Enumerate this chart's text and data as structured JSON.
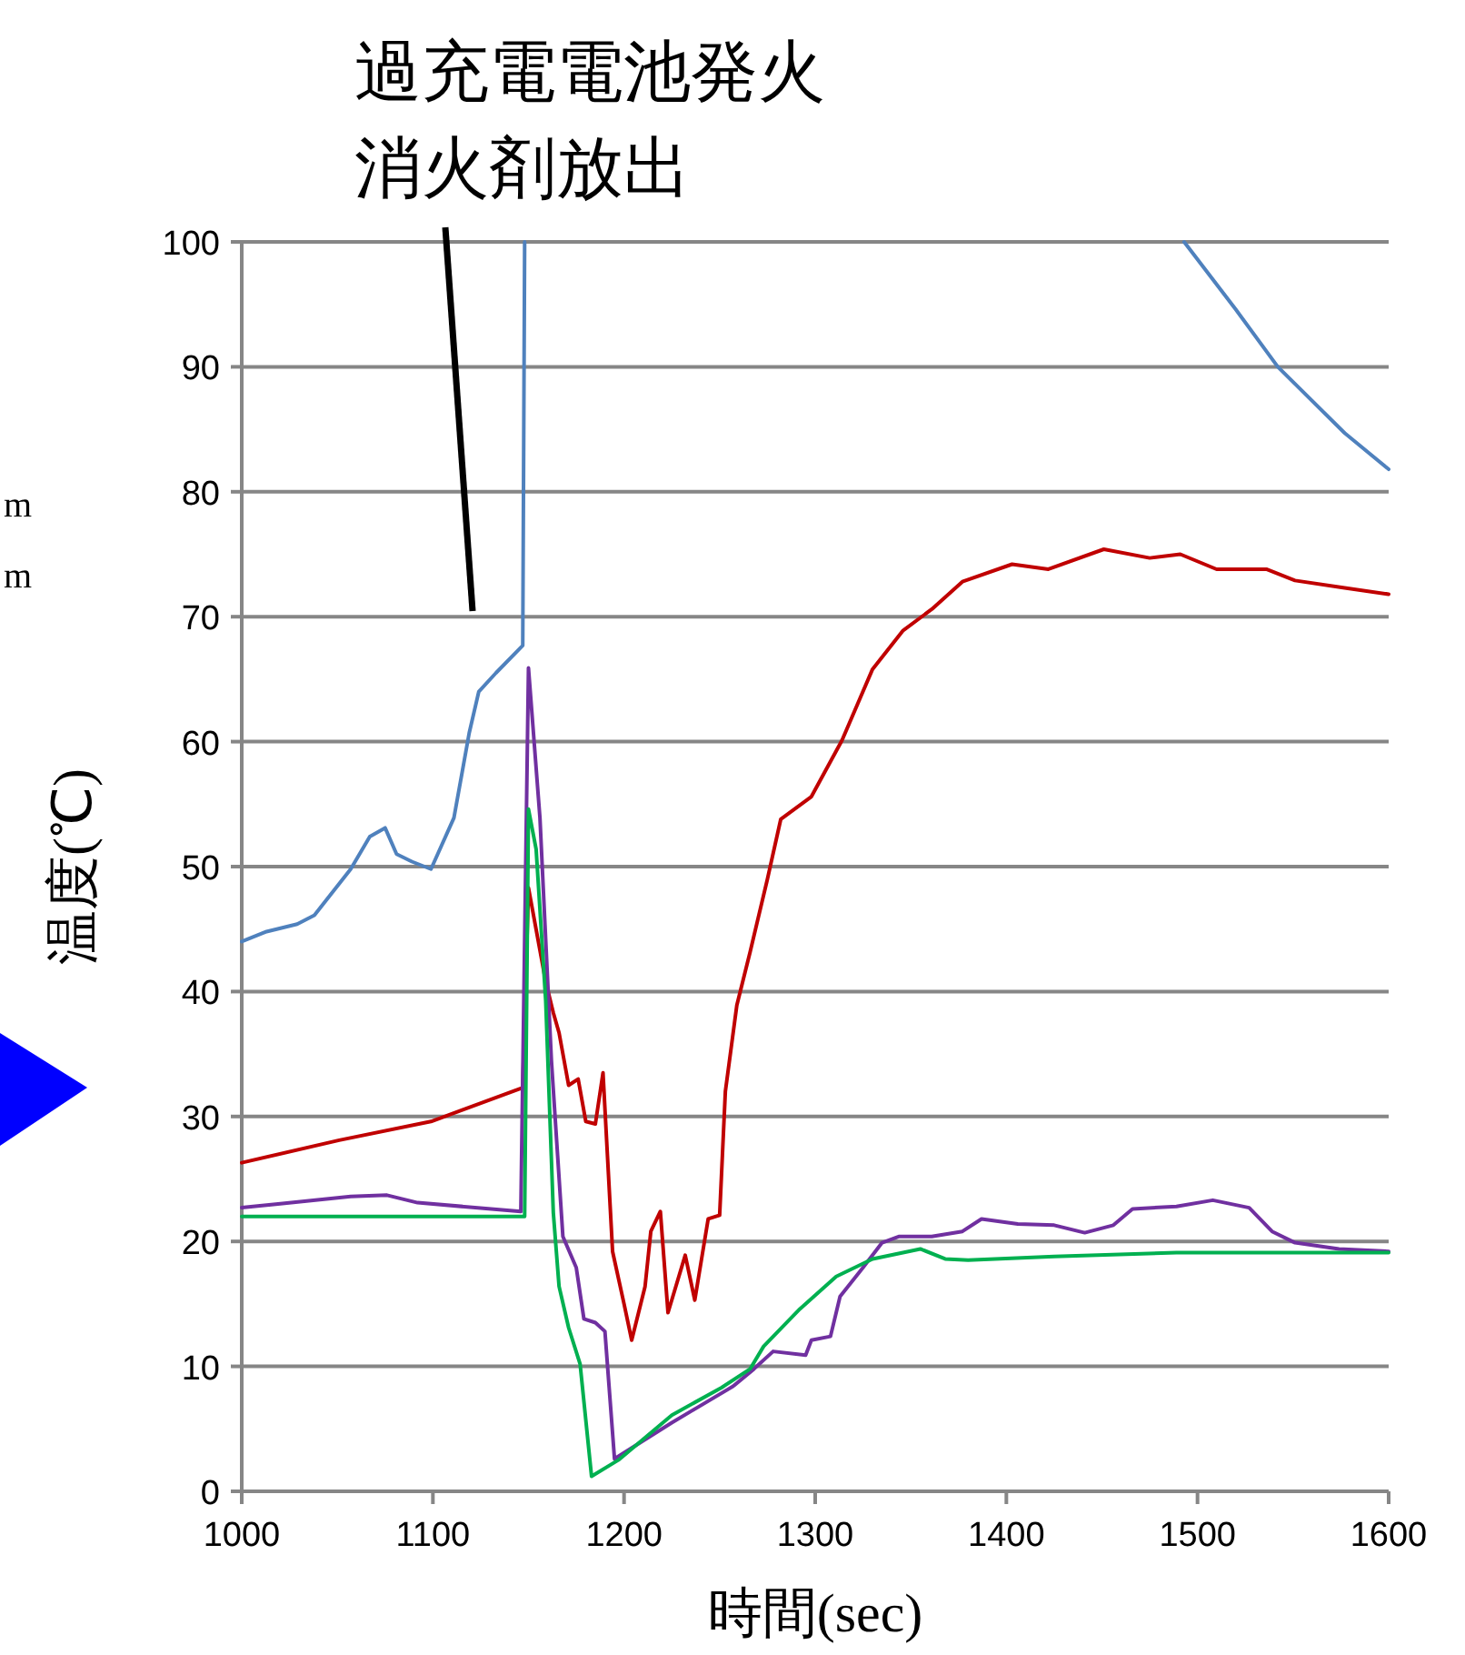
{
  "chart_data": {
    "type": "line",
    "xlabel": "時間(sec)",
    "ylabel": "温度(℃)",
    "xlim": [
      1000,
      1600
    ],
    "xticks": [
      1000,
      1100,
      1200,
      1300,
      1400,
      1500,
      1600
    ],
    "ylim": [
      0,
      100
    ],
    "yticks": [
      0,
      10,
      20,
      30,
      40,
      50,
      60,
      70,
      80,
      90,
      100
    ],
    "grid": "y",
    "annotations": [
      "過充電電池発火",
      "消火剤放出",
      "m",
      "m"
    ],
    "series": [
      {
        "color": "#4f81bd",
        "x": [
          1000,
          1013,
          1029,
          1038,
          1057,
          1067,
          1075,
          1081,
          1089,
          1099,
          1111,
          1119,
          1124,
          1133,
          1147,
          1148
        ],
        "values": [
          44.0,
          44.8,
          45.4,
          46.1,
          49.8,
          52.4,
          53.1,
          51.0,
          50.4,
          49.8,
          53.9,
          60.7,
          64.0,
          65.5,
          67.7,
          100
        ]
      },
      {
        "color": "#4f81bd",
        "x": [
          1493,
          1520,
          1542,
          1577,
          1600
        ],
        "values": [
          100,
          94.6,
          90.0,
          84.7,
          81.8
        ]
      },
      {
        "color": "#c00000",
        "x": [
          1000,
          1051,
          1099,
          1147,
          1150,
          1159,
          1163,
          1166,
          1171,
          1176,
          1180,
          1185,
          1189,
          1194,
          1200,
          1204,
          1211,
          1214,
          1219,
          1223,
          1232,
          1237,
          1244,
          1250,
          1253,
          1259,
          1266,
          1275,
          1282,
          1298,
          1314,
          1330,
          1346,
          1361,
          1377,
          1403,
          1422,
          1451,
          1475,
          1491,
          1510,
          1536,
          1551,
          1577,
          1600
        ],
        "values": [
          26.3,
          28.1,
          29.6,
          32.3,
          48.3,
          40.8,
          38.3,
          36.7,
          32.5,
          33.0,
          29.6,
          29.4,
          33.5,
          19.2,
          15.0,
          12.1,
          16.4,
          20.8,
          22.4,
          14.3,
          18.9,
          15.3,
          21.8,
          22.1,
          32.0,
          38.9,
          43.2,
          49.0,
          53.8,
          55.6,
          60.1,
          65.8,
          68.9,
          70.6,
          72.8,
          74.2,
          73.8,
          75.4,
          74.7,
          75.0,
          73.8,
          73.8,
          72.9,
          72.3,
          71.8
        ]
      },
      {
        "color": "#7030a0",
        "x": [
          1000,
          1019,
          1057,
          1076,
          1092,
          1146,
          1150,
          1156,
          1162,
          1168,
          1175,
          1179,
          1185,
          1190,
          1195,
          1225,
          1257,
          1268,
          1278,
          1295,
          1298,
          1308,
          1313,
          1325,
          1335,
          1344,
          1361,
          1377,
          1387,
          1406,
          1425,
          1441,
          1456,
          1466,
          1489,
          1508,
          1527,
          1539,
          1551,
          1574,
          1600
        ],
        "values": [
          22.7,
          23.0,
          23.6,
          23.7,
          23.1,
          22.4,
          65.9,
          53.9,
          34.5,
          20.4,
          17.9,
          13.8,
          13.5,
          12.8,
          2.6,
          5.5,
          8.4,
          9.8,
          11.2,
          10.9,
          12.1,
          12.4,
          15.6,
          17.9,
          19.9,
          20.4,
          20.4,
          20.8,
          21.8,
          21.4,
          21.3,
          20.7,
          21.3,
          22.6,
          22.8,
          23.3,
          22.7,
          20.8,
          19.9,
          19.4,
          19.2
        ]
      },
      {
        "color": "#00b050",
        "x": [
          1000,
          1148,
          1150,
          1154,
          1159,
          1163,
          1166,
          1171,
          1177,
          1183,
          1197,
          1225,
          1251,
          1266,
          1273,
          1292,
          1311,
          1330,
          1355,
          1368,
          1380,
          1425,
          1489,
          1600
        ],
        "values": [
          22.0,
          22.0,
          54.6,
          51.4,
          39.3,
          22.3,
          16.4,
          13.1,
          10.2,
          1.2,
          2.5,
          6.1,
          8.3,
          9.8,
          11.6,
          14.6,
          17.2,
          18.6,
          19.4,
          18.6,
          18.5,
          18.8,
          19.1,
          19.1
        ]
      }
    ]
  }
}
